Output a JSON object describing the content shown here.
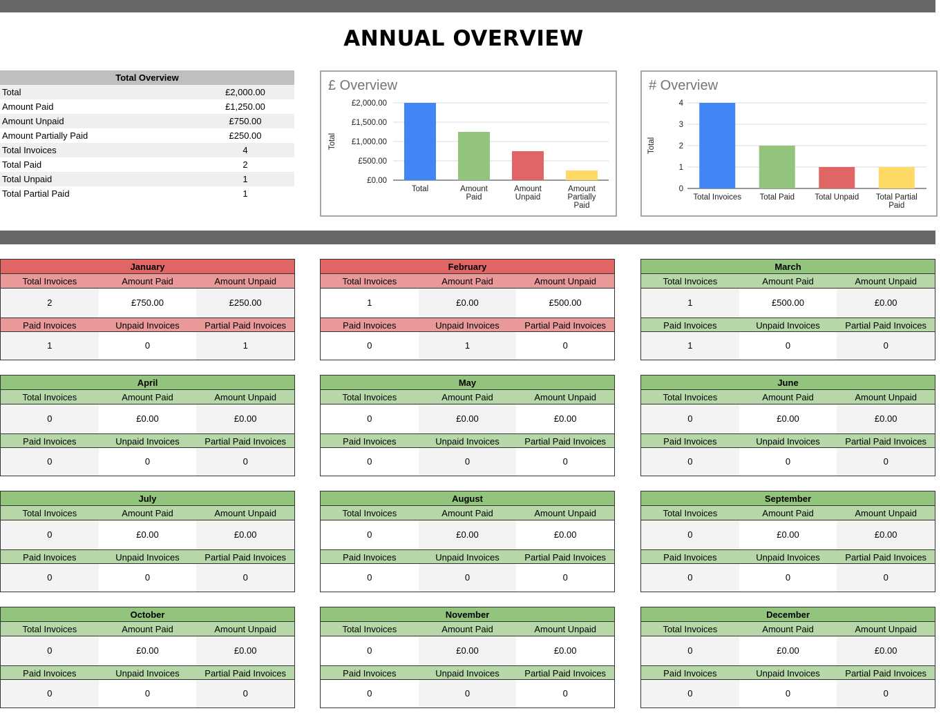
{
  "title": "ANNUAL OVERVIEW",
  "overview": {
    "header": "Total Overview",
    "rows": [
      {
        "label": "Total",
        "value": "£2,000.00"
      },
      {
        "label": "Amount Paid",
        "value": "£1,250.00"
      },
      {
        "label": "Amount Unpaid",
        "value": "£750.00"
      },
      {
        "label": "Amount Partially Paid",
        "value": "£250.00"
      },
      {
        "label": "Total Invoices",
        "value": "4"
      },
      {
        "label": "Total Paid",
        "value": "2"
      },
      {
        "label": "Total Unpaid",
        "value": "1"
      },
      {
        "label": "Total Partial Paid",
        "value": "1"
      }
    ]
  },
  "colors": {
    "band": "#666666",
    "red_header": "#e06666",
    "red_labels": "#ea9999",
    "green_header": "#93c47d",
    "green_labels": "#b6d7a8",
    "bar_blue": "#4285f4",
    "bar_green": "#93c47d",
    "bar_red": "#e06666",
    "bar_yellow": "#ffd966"
  },
  "chart_data": [
    {
      "type": "bar",
      "title": "£ Overview",
      "ylabel": "Total",
      "categories": [
        [
          "Total"
        ],
        [
          "Amount",
          "Paid"
        ],
        [
          "Amount",
          "Unpaid"
        ],
        [
          "Amount",
          "Partially",
          "Paid"
        ]
      ],
      "values": [
        2000,
        1250,
        750,
        250
      ],
      "bar_colors": [
        "#4285f4",
        "#93c47d",
        "#e06666",
        "#ffd966"
      ],
      "ylim": [
        0,
        2000
      ],
      "yticks": [
        0,
        500,
        1000,
        1500,
        2000
      ],
      "ytick_labels": [
        "£0.00",
        "£500.00",
        "£1,000.00",
        "£1,500.00",
        "£2,000.00"
      ],
      "grid": true
    },
    {
      "type": "bar",
      "title": "# Overview",
      "ylabel": "Total",
      "categories": [
        [
          "Total Invoices"
        ],
        [
          "Total Paid"
        ],
        [
          "Total Unpaid"
        ],
        [
          "Total Partial",
          "Paid"
        ]
      ],
      "values": [
        4,
        2,
        1,
        1
      ],
      "bar_colors": [
        "#4285f4",
        "#93c47d",
        "#e06666",
        "#ffd966"
      ],
      "ylim": [
        0,
        4
      ],
      "yticks": [
        0,
        1,
        2,
        3,
        4
      ],
      "ytick_labels": [
        "0",
        "1",
        "2",
        "3",
        "4"
      ],
      "grid": true
    }
  ],
  "month_labels": {
    "row1": [
      "Total Invoices",
      "Amount Paid",
      "Amount Unpaid"
    ],
    "row2": [
      "Paid Invoices",
      "Unpaid Invoices",
      "Partial Paid Invoices"
    ]
  },
  "months": [
    {
      "name": "January",
      "status": "red",
      "r1": [
        "2",
        "£750.00",
        "£250.00"
      ],
      "r2": [
        "1",
        "0",
        "1"
      ]
    },
    {
      "name": "February",
      "status": "red",
      "r1": [
        "1",
        "£0.00",
        "£500.00"
      ],
      "r2": [
        "0",
        "1",
        "0"
      ]
    },
    {
      "name": "March",
      "status": "green",
      "r1": [
        "1",
        "£500.00",
        "£0.00"
      ],
      "r2": [
        "1",
        "0",
        "0"
      ]
    },
    {
      "name": "April",
      "status": "green",
      "r1": [
        "0",
        "£0.00",
        "£0.00"
      ],
      "r2": [
        "0",
        "0",
        "0"
      ]
    },
    {
      "name": "May",
      "status": "green",
      "r1": [
        "0",
        "£0.00",
        "£0.00"
      ],
      "r2": [
        "0",
        "0",
        "0"
      ]
    },
    {
      "name": "June",
      "status": "green",
      "r1": [
        "0",
        "£0.00",
        "£0.00"
      ],
      "r2": [
        "0",
        "0",
        "0"
      ]
    },
    {
      "name": "July",
      "status": "green",
      "r1": [
        "0",
        "£0.00",
        "£0.00"
      ],
      "r2": [
        "0",
        "0",
        "0"
      ]
    },
    {
      "name": "August",
      "status": "green",
      "r1": [
        "0",
        "£0.00",
        "£0.00"
      ],
      "r2": [
        "0",
        "0",
        "0"
      ]
    },
    {
      "name": "September",
      "status": "green",
      "r1": [
        "0",
        "£0.00",
        "£0.00"
      ],
      "r2": [
        "0",
        "0",
        "0"
      ]
    },
    {
      "name": "October",
      "status": "green",
      "r1": [
        "0",
        "£0.00",
        "£0.00"
      ],
      "r2": [
        "0",
        "0",
        "0"
      ]
    },
    {
      "name": "November",
      "status": "green",
      "r1": [
        "0",
        "£0.00",
        "£0.00"
      ],
      "r2": [
        "0",
        "0",
        "0"
      ]
    },
    {
      "name": "December",
      "status": "green",
      "r1": [
        "0",
        "£0.00",
        "£0.00"
      ],
      "r2": [
        "0",
        "0",
        "0"
      ]
    }
  ]
}
